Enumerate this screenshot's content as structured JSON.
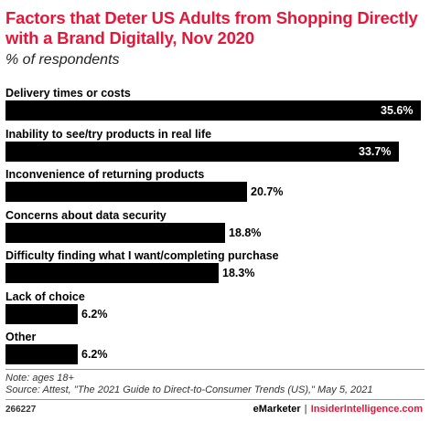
{
  "header": {
    "title": "Factors that Deter US Adults from Shopping Directly with a Brand Digitally, Nov 2020",
    "subtitle": "% of respondents"
  },
  "chart_data": {
    "type": "bar",
    "orientation": "horizontal",
    "title": "Factors that Deter US Adults from Shopping Directly with a Brand Digitally, Nov 2020",
    "subtitle": "% of respondents",
    "categories": [
      "Delivery times or costs",
      "Inability to see/try products in real life",
      "Inconvenience of returning products",
      "Concerns about data security",
      "Difficulty finding what I want/completing purchase",
      "Lack of choice",
      "Other"
    ],
    "values": [
      35.6,
      33.7,
      20.7,
      18.8,
      18.3,
      6.2,
      6.2
    ],
    "value_labels": [
      "35.6%",
      "33.7%",
      "20.7%",
      "18.8%",
      "18.3%",
      "6.2%",
      "6.2%"
    ],
    "xlim": [
      0,
      35.6
    ],
    "bar_color": "#000000",
    "grid": false
  },
  "notes": {
    "note": "Note: ages 18+",
    "source": "Source: Attest, \"The 2021 Guide to Direct-to-Consumer Trends (US),\" May 5, 2021"
  },
  "footer": {
    "chart_id": "266227",
    "brand_primary": "eMarketer",
    "brand_separator": "|",
    "brand_secondary": "InsiderIntelligence.com"
  },
  "colors": {
    "title": "#e4173a",
    "accent": "#e4173a"
  }
}
